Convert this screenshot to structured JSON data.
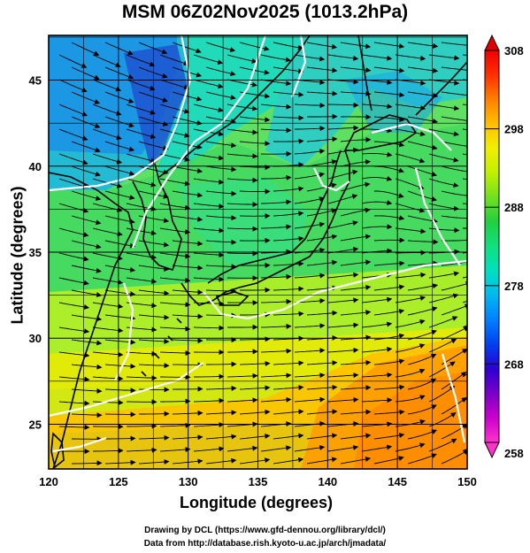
{
  "title": "MSM 06Z02Nov2025 (1013.2hPa)",
  "axes": {
    "xlabel": "Longitude (degrees)",
    "ylabel": "Latitude  (degrees)",
    "x_ticks": [
      120,
      125,
      130,
      135,
      140,
      145,
      150
    ],
    "y_ticks": [
      25,
      30,
      35,
      40,
      45
    ],
    "xlim": [
      120,
      150
    ],
    "ylim": [
      22.4,
      47.6
    ],
    "grid": true
  },
  "colorbar": {
    "ticks": [
      258,
      268,
      278,
      288,
      298,
      308
    ],
    "range": [
      258,
      308
    ],
    "palette": [
      "#ff33cc",
      "#cc00cc",
      "#7a00c8",
      "#2d00d2",
      "#0040f0",
      "#0080ff",
      "#00b8f0",
      "#00e0c0",
      "#10e080",
      "#20d040",
      "#70e020",
      "#c0f000",
      "#f0f000",
      "#ffc000",
      "#ff8000",
      "#ff3000",
      "#f00000"
    ]
  },
  "credits": {
    "line1": "Drawing by DCL (https://www.gfd-dennou.org/library/dcl/)",
    "line2": "Data from http://database.rish.kyoto-u.ac.jp/arch/jmadata/"
  }
}
